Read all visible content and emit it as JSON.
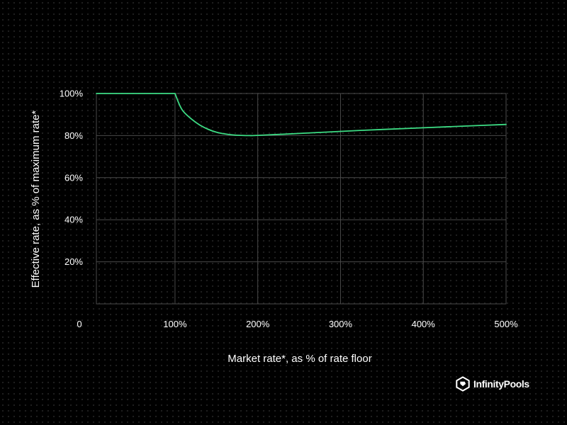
{
  "chart_data": {
    "type": "line",
    "xlabel": "Market rate*, as % of rate floor",
    "ylabel": "Effective rate, as % of maximum rate*",
    "xlim": [
      5,
      500
    ],
    "ylim": [
      0,
      100
    ],
    "x_ticks": [
      {
        "value": 100,
        "label": "100%"
      },
      {
        "value": 200,
        "label": "200%"
      },
      {
        "value": 300,
        "label": "300%"
      },
      {
        "value": 400,
        "label": "400%"
      },
      {
        "value": 500,
        "label": "500%"
      }
    ],
    "y_ticks": [
      {
        "value": 20,
        "label": "20%"
      },
      {
        "value": 40,
        "label": "40%"
      },
      {
        "value": 60,
        "label": "60%"
      },
      {
        "value": 80,
        "label": "80%"
      },
      {
        "value": 100,
        "label": "100%"
      }
    ],
    "origin_label": "0",
    "grid": true,
    "series": [
      {
        "color": "#3ddc84",
        "x": [
          5,
          100,
          105,
          110,
          120,
          130,
          140,
          150,
          160,
          170,
          180,
          190,
          200,
          250,
          300,
          350,
          400,
          450,
          500
        ],
        "y": [
          100,
          100,
          95.0,
          91.5,
          87.8,
          85.0,
          83.0,
          81.6,
          80.8,
          80.3,
          80.1,
          80.0,
          80.1,
          81.0,
          82.0,
          82.9,
          83.7,
          84.5,
          85.3
        ]
      }
    ]
  },
  "brand": {
    "name": "InfinityPools",
    "icon": "infinitypools-logo-icon"
  },
  "colors": {
    "background": "#000000",
    "grid": "#4a4a4a",
    "line": "#3ddc84",
    "text": "#ffffff"
  }
}
